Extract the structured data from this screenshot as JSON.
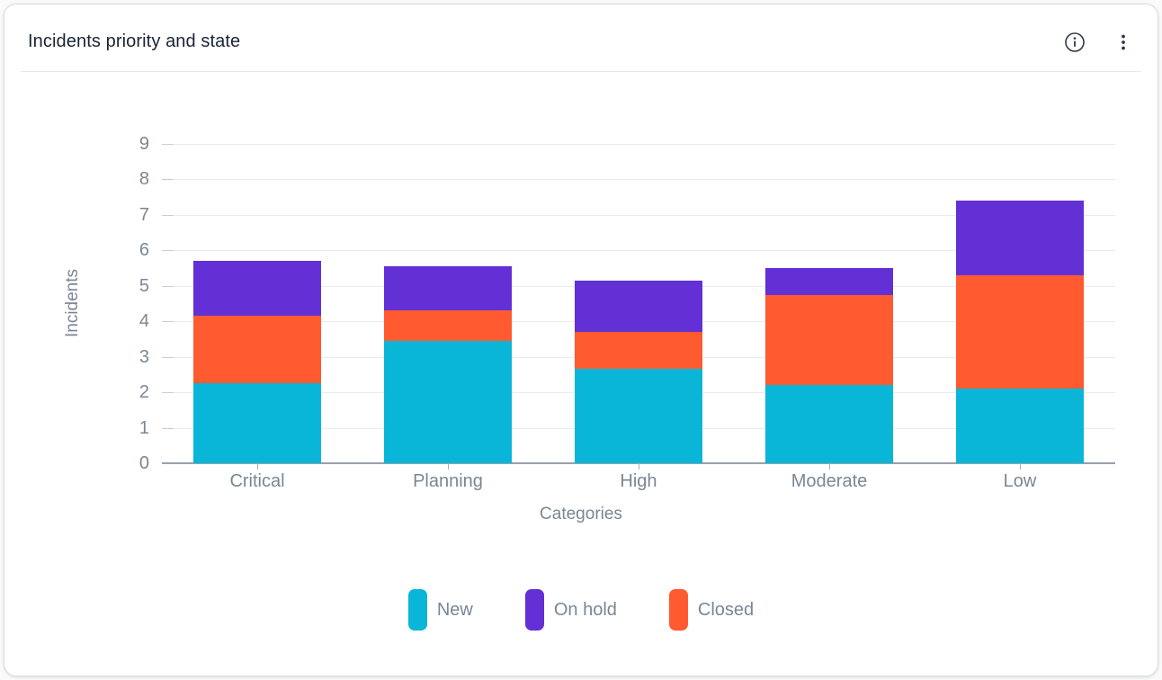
{
  "header": {
    "title": "Incidents priority and state",
    "info_icon": "info-circle",
    "menu_icon": "kebab-vertical-menu"
  },
  "chart_data": {
    "type": "bar",
    "stacked": true,
    "title": "Incidents priority and state",
    "xlabel": "Categories",
    "ylabel": "Incidents",
    "ylim": [
      0,
      9
    ],
    "ytick_step": 1,
    "grid": true,
    "legend_position": "bottom",
    "bar_width_ratio": 0.67,
    "stack_order": [
      "New",
      "Closed",
      "On hold"
    ],
    "categories": [
      "Critical",
      "Planning",
      "High",
      "Moderate",
      "Low"
    ],
    "series": [
      {
        "name": "New",
        "color": "#0ab6d7",
        "values": [
          2.25,
          3.45,
          2.65,
          2.2,
          2.1
        ]
      },
      {
        "name": "On hold",
        "color": "#6230d4",
        "values": [
          1.55,
          1.25,
          1.45,
          0.75,
          2.1
        ]
      },
      {
        "name": "Closed",
        "color": "#ff5a30",
        "values": [
          1.9,
          0.85,
          1.05,
          2.55,
          3.2
        ]
      }
    ]
  },
  "theme": {
    "title_text": "#1a2433",
    "axis_text": "#7b8694",
    "gridline": "#e9ecef",
    "axis_line": "#99a1ab",
    "icon_color": "#2f3a49",
    "card_bg": "#ffffff",
    "card_border": "#d9dde1"
  }
}
